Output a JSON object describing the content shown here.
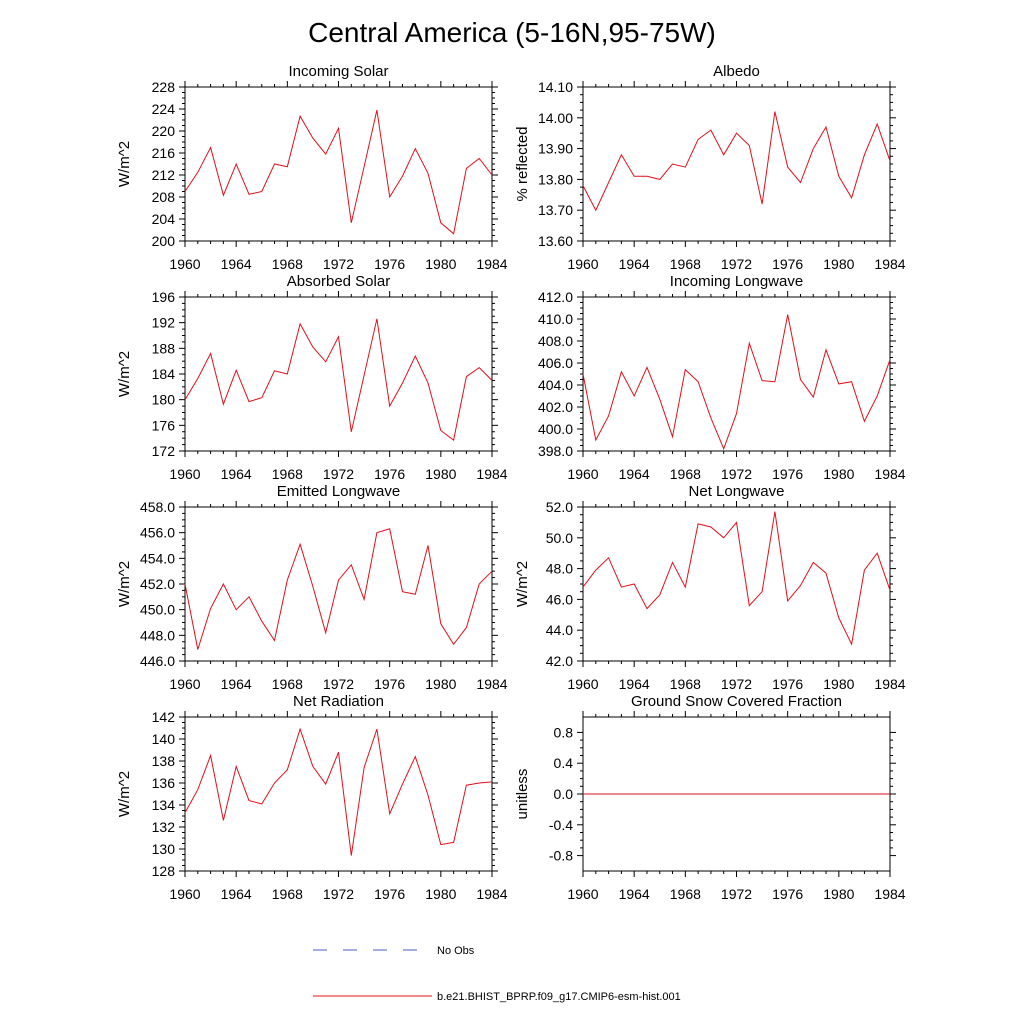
{
  "page": {
    "title": "Central America (5-16N,95-75W)"
  },
  "chart_data": [
    {
      "type": "line",
      "title": "Incoming Solar",
      "ylabel": "W/m^2",
      "x": [
        1960,
        1961,
        1962,
        1963,
        1964,
        1965,
        1966,
        1967,
        1968,
        1969,
        1970,
        1971,
        1972,
        1973,
        1974,
        1975,
        1976,
        1977,
        1978,
        1979,
        1980,
        1981,
        1982,
        1983,
        1984
      ],
      "series": [
        {
          "values": [
            209,
            212.5,
            217,
            208.3,
            214,
            208.5,
            209,
            214,
            213.5,
            222.7,
            218.7,
            215.8,
            220.5,
            203.3,
            213.5,
            223.8,
            208,
            211.8,
            216.8,
            212.3,
            203.3,
            201.3,
            213.2,
            215,
            212
          ]
        }
      ],
      "xlim": [
        1960,
        1984
      ],
      "ylim": [
        200,
        228
      ],
      "xticks": [
        1960,
        1964,
        1968,
        1972,
        1976,
        1980,
        1984
      ],
      "yticks": [
        200,
        204,
        208,
        212,
        216,
        220,
        224,
        228
      ],
      "yticklabels": [
        "200",
        "204",
        "208",
        "212",
        "216",
        "220",
        "224",
        "228"
      ],
      "grid": false
    },
    {
      "type": "line",
      "title": "Albedo",
      "ylabel": "% reflected",
      "x": [
        1960,
        1961,
        1962,
        1963,
        1964,
        1965,
        1966,
        1967,
        1968,
        1969,
        1970,
        1971,
        1972,
        1973,
        1974,
        1975,
        1976,
        1977,
        1978,
        1979,
        1980,
        1981,
        1982,
        1983,
        1984
      ],
      "series": [
        {
          "values": [
            13.78,
            13.7,
            13.79,
            13.88,
            13.81,
            13.81,
            13.8,
            13.85,
            13.84,
            13.93,
            13.96,
            13.88,
            13.95,
            13.91,
            13.72,
            14.02,
            13.84,
            13.79,
            13.9,
            13.97,
            13.81,
            13.74,
            13.88,
            13.98,
            13.86
          ]
        }
      ],
      "xlim": [
        1960,
        1984
      ],
      "ylim": [
        13.6,
        14.1
      ],
      "xticks": [
        1960,
        1964,
        1968,
        1972,
        1976,
        1980,
        1984
      ],
      "yticks": [
        13.6,
        13.7,
        13.8,
        13.9,
        14.0,
        14.1
      ],
      "yticklabels": [
        "13.60",
        "13.70",
        "13.80",
        "13.90",
        "14.00",
        "14.10"
      ],
      "grid": false
    },
    {
      "type": "line",
      "title": "Absorbed Solar",
      "ylabel": "W/m^2",
      "x": [
        1960,
        1961,
        1962,
        1963,
        1964,
        1965,
        1966,
        1967,
        1968,
        1969,
        1970,
        1971,
        1972,
        1973,
        1974,
        1975,
        1976,
        1977,
        1978,
        1979,
        1980,
        1981,
        1982,
        1983,
        1984
      ],
      "series": [
        {
          "values": [
            180,
            183.3,
            187.2,
            179.3,
            184.6,
            179.7,
            180.3,
            184.5,
            184,
            191.8,
            188.2,
            185.9,
            189.8,
            175,
            183.8,
            192.6,
            179,
            182.6,
            186.8,
            182.6,
            175.2,
            173.7,
            183.6,
            185,
            183
          ]
        }
      ],
      "xlim": [
        1960,
        1984
      ],
      "ylim": [
        172,
        196
      ],
      "xticks": [
        1960,
        1964,
        1968,
        1972,
        1976,
        1980,
        1984
      ],
      "yticks": [
        172,
        176,
        180,
        184,
        188,
        192,
        196
      ],
      "yticklabels": [
        "172",
        "176",
        "180",
        "184",
        "188",
        "192",
        "196"
      ],
      "grid": false
    },
    {
      "type": "line",
      "title": "Incoming Longwave",
      "ylabel": "",
      "x": [
        1960,
        1961,
        1962,
        1963,
        1964,
        1965,
        1966,
        1967,
        1968,
        1969,
        1970,
        1971,
        1972,
        1973,
        1974,
        1975,
        1976,
        1977,
        1978,
        1979,
        1980,
        1981,
        1982,
        1983,
        1984
      ],
      "series": [
        {
          "values": [
            405,
            399,
            401.2,
            405.2,
            403,
            405.6,
            402.7,
            399.3,
            405.4,
            404.3,
            401,
            398.2,
            401.4,
            407.8,
            404.4,
            404.3,
            410.4,
            404.5,
            402.9,
            407.2,
            404.1,
            404.3,
            400.7,
            403,
            406.3
          ]
        }
      ],
      "xlim": [
        1960,
        1984
      ],
      "ylim": [
        398,
        412
      ],
      "xticks": [
        1960,
        1964,
        1968,
        1972,
        1976,
        1980,
        1984
      ],
      "yticks": [
        398,
        400,
        402,
        404,
        406,
        408,
        410,
        412
      ],
      "yticklabels": [
        "398.0",
        "400.0",
        "402.0",
        "404.0",
        "406.0",
        "408.0",
        "410.0",
        "412.0"
      ],
      "grid": false
    },
    {
      "type": "line",
      "title": "Emitted Longwave",
      "ylabel": "W/m^2",
      "x": [
        1960,
        1961,
        1962,
        1963,
        1964,
        1965,
        1966,
        1967,
        1968,
        1969,
        1970,
        1971,
        1972,
        1973,
        1974,
        1975,
        1976,
        1977,
        1978,
        1979,
        1980,
        1981,
        1982,
        1983,
        1984
      ],
      "series": [
        {
          "values": [
            452,
            446.9,
            450.1,
            452,
            450,
            451,
            449.1,
            447.6,
            452.3,
            455.1,
            451.8,
            448.2,
            452.3,
            453.5,
            450.8,
            456,
            456.3,
            451.4,
            451.2,
            455,
            448.9,
            447.3,
            448.6,
            452,
            453
          ]
        }
      ],
      "xlim": [
        1960,
        1984
      ],
      "ylim": [
        446,
        458
      ],
      "xticks": [
        1960,
        1964,
        1968,
        1972,
        1976,
        1980,
        1984
      ],
      "yticks": [
        446,
        448,
        450,
        452,
        454,
        456,
        458
      ],
      "yticklabels": [
        "446.0",
        "448.0",
        "450.0",
        "452.0",
        "454.0",
        "456.0",
        "458.0"
      ],
      "grid": false
    },
    {
      "type": "line",
      "title": "Net Longwave",
      "ylabel": "W/m^2",
      "x": [
        1960,
        1961,
        1962,
        1963,
        1964,
        1965,
        1966,
        1967,
        1968,
        1969,
        1970,
        1971,
        1972,
        1973,
        1974,
        1975,
        1976,
        1977,
        1978,
        1979,
        1980,
        1981,
        1982,
        1983,
        1984
      ],
      "series": [
        {
          "values": [
            46.8,
            47.9,
            48.7,
            46.8,
            47,
            45.4,
            46.3,
            48.4,
            46.8,
            50.9,
            50.7,
            50,
            51,
            45.6,
            46.5,
            51.7,
            45.9,
            46.9,
            48.4,
            47.7,
            44.8,
            43.1,
            47.9,
            49,
            46.6
          ]
        }
      ],
      "xlim": [
        1960,
        1984
      ],
      "ylim": [
        42,
        52
      ],
      "xticks": [
        1960,
        1964,
        1968,
        1972,
        1976,
        1980,
        1984
      ],
      "yticks": [
        42,
        44,
        46,
        48,
        50,
        52
      ],
      "yticklabels": [
        "42.0",
        "44.0",
        "46.0",
        "48.0",
        "50.0",
        "52.0"
      ],
      "grid": false
    },
    {
      "type": "line",
      "title": "Net Radiation",
      "ylabel": "W/m^2",
      "x": [
        1960,
        1961,
        1962,
        1963,
        1964,
        1965,
        1966,
        1967,
        1968,
        1969,
        1970,
        1971,
        1972,
        1973,
        1974,
        1975,
        1976,
        1977,
        1978,
        1979,
        1980,
        1981,
        1982,
        1983,
        1984
      ],
      "series": [
        {
          "values": [
            133.3,
            135.4,
            138.5,
            132.6,
            137.5,
            134.4,
            134.1,
            136,
            137.2,
            140.9,
            137.5,
            135.9,
            138.8,
            129.4,
            137.4,
            140.9,
            133.2,
            135.9,
            138.4,
            134.9,
            130.4,
            130.6,
            135.8,
            136,
            136.1
          ]
        }
      ],
      "xlim": [
        1960,
        1984
      ],
      "ylim": [
        128,
        142
      ],
      "xticks": [
        1960,
        1964,
        1968,
        1972,
        1976,
        1980,
        1984
      ],
      "yticks": [
        128,
        130,
        132,
        134,
        136,
        138,
        140,
        142
      ],
      "yticklabels": [
        "128",
        "130",
        "132",
        "134",
        "136",
        "138",
        "140",
        "142"
      ],
      "grid": false
    },
    {
      "type": "line",
      "title": "Ground Snow Covered Fraction",
      "ylabel": "unitless",
      "x": [
        1960,
        1961,
        1962,
        1963,
        1964,
        1965,
        1966,
        1967,
        1968,
        1969,
        1970,
        1971,
        1972,
        1973,
        1974,
        1975,
        1976,
        1977,
        1978,
        1979,
        1980,
        1981,
        1982,
        1983,
        1984
      ],
      "series": [
        {
          "values": [
            0,
            0,
            0,
            0,
            0,
            0,
            0,
            0,
            0,
            0,
            0,
            0,
            0,
            0,
            0,
            0,
            0,
            0,
            0,
            0,
            0,
            0,
            0,
            0,
            0
          ]
        }
      ],
      "xlim": [
        1960,
        1984
      ],
      "ylim": [
        -1.0,
        1.0
      ],
      "xticks": [
        1960,
        1964,
        1968,
        1972,
        1976,
        1980,
        1984
      ],
      "yticks": [
        -0.8,
        -0.4,
        0.0,
        0.4,
        0.8
      ],
      "yticklabels": [
        "-0.8",
        "-0.4",
        "0.0",
        "0.4",
        "0.8"
      ],
      "grid": false
    }
  ],
  "legend": [
    {
      "label": "No Obs",
      "color": "#4a5fc1",
      "dash": "dashed"
    },
    {
      "label": "b.e21.BHIST_BPRP.f09_g17.CMIP6-esm-hist.001",
      "color": "#e0101a",
      "dash": "solid"
    }
  ],
  "colors": {
    "series_line": "#e0101a",
    "axis": "#000000"
  }
}
